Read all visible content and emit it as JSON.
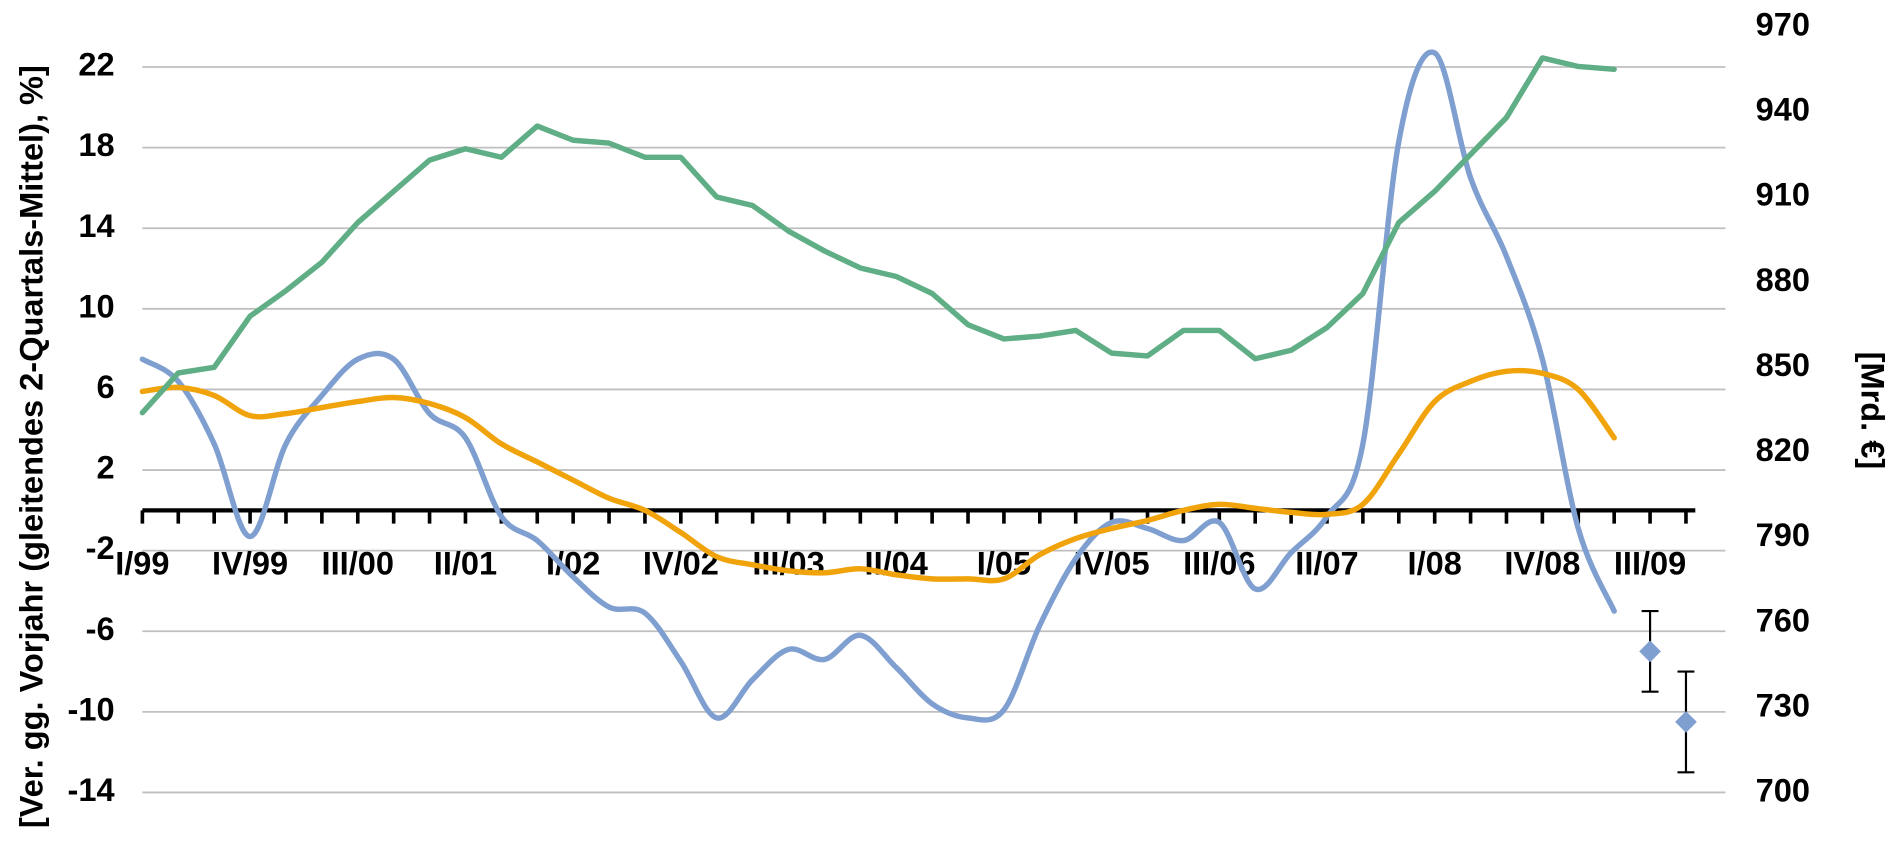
{
  "chart_data": {
    "type": "line",
    "ylabel": "[Ver. gg. Vorjahr (gleitendes 2-Quartals-Mittel), %]",
    "y2label": "[Mrd. €]",
    "categories": [
      "I/99",
      null,
      null,
      "IV/99",
      null,
      null,
      "III/00",
      null,
      null,
      "II/01",
      null,
      null,
      "I/02",
      null,
      null,
      "IV/02",
      null,
      null,
      "III/03",
      null,
      null,
      "II/04",
      null,
      null,
      "I/05",
      null,
      null,
      "IV/05",
      null,
      null,
      "III/06",
      null,
      null,
      "II/07",
      null,
      null,
      "I/08",
      null,
      null,
      "IV/08",
      null,
      null,
      "III/09",
      null
    ],
    "ylim": [
      -16,
      24
    ],
    "yticks": [
      -14,
      -10,
      -6,
      -2,
      2,
      6,
      10,
      14,
      18,
      22
    ],
    "y2lim": [
      686,
      970
    ],
    "y2ticks": [
      700,
      730,
      760,
      790,
      820,
      850,
      880,
      910,
      940,
      970
    ],
    "grid": true,
    "series": [
      {
        "color": "#7f9fd0",
        "smooth": true,
        "values": [
          7.5,
          6.4,
          3.3,
          -1.3,
          3.3,
          5.7,
          7.5,
          7.5,
          4.8,
          3.6,
          -0.3,
          -1.5,
          -3.3,
          -4.8,
          -5.1,
          -7.5,
          -10.3,
          -8.4,
          -6.9,
          -7.4,
          -6.2,
          -7.8,
          -9.6,
          -10.3,
          -9.9,
          -5.7,
          -2.4,
          -0.6,
          -0.9,
          -1.5,
          -0.6,
          -3.9,
          -2.1,
          -0.3,
          3.3,
          18.3,
          22.7,
          16.5,
          12.6,
          7.5,
          -0.9,
          -5,
          null,
          null
        ]
      },
      {
        "color": "#f0a30a",
        "smooth": true,
        "values": [
          5.9,
          6.1,
          5.7,
          4.7,
          4.8,
          5.1,
          5.4,
          5.6,
          5.3,
          4.6,
          3.3,
          2.4,
          1.5,
          0.6,
          0,
          -1.1,
          -2.3,
          -2.7,
          -3.0,
          -3.1,
          -2.9,
          -3.2,
          -3.4,
          -3.4,
          -3.4,
          -2.2,
          -1.4,
          -0.9,
          -0.5,
          0,
          0.3,
          0.1,
          -0.1,
          -0.2,
          0.3,
          2.8,
          5.4,
          6.4,
          6.9,
          6.8,
          6.0,
          3.6,
          null,
          null
        ]
      },
      {
        "color": "#5fae85",
        "smooth": false,
        "axis": "y2",
        "values": [
          834,
          848,
          850,
          868,
          877,
          887,
          901,
          912,
          923,
          927,
          924,
          935,
          930,
          929,
          924,
          924,
          910,
          907,
          898,
          891,
          885,
          882,
          876,
          865,
          860,
          861,
          863,
          855,
          854,
          863,
          863,
          853,
          856,
          864,
          876,
          901,
          912,
          925,
          938,
          959,
          956,
          955,
          null,
          null
        ]
      },
      {
        "color": "#7f9fd0",
        "marker": "diamond",
        "values": [
          null,
          null,
          null,
          null,
          null,
          null,
          null,
          null,
          null,
          null,
          null,
          null,
          null,
          null,
          null,
          null,
          null,
          null,
          null,
          null,
          null,
          null,
          null,
          null,
          null,
          null,
          null,
          null,
          null,
          null,
          null,
          null,
          null,
          null,
          null,
          null,
          null,
          null,
          null,
          null,
          null,
          null,
          -7,
          -10.5
        ],
        "errors": [
          null,
          null,
          null,
          null,
          null,
          null,
          null,
          null,
          null,
          null,
          null,
          null,
          null,
          null,
          null,
          null,
          null,
          null,
          null,
          null,
          null,
          null,
          null,
          null,
          null,
          null,
          null,
          null,
          null,
          null,
          null,
          null,
          null,
          null,
          null,
          null,
          null,
          null,
          null,
          null,
          null,
          null,
          2,
          2.5
        ]
      }
    ]
  }
}
